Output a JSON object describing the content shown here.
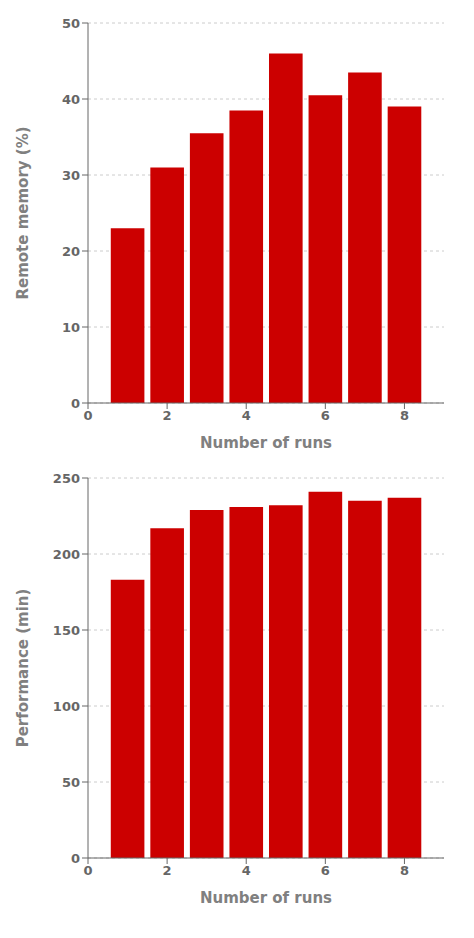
{
  "chart_data": [
    {
      "type": "bar",
      "x": [
        1,
        2,
        3,
        4,
        5,
        6,
        7,
        8
      ],
      "values": [
        23.0,
        31.0,
        35.5,
        38.5,
        46.0,
        40.5,
        43.5,
        39.0
      ],
      "xlabel": "Number of runs",
      "ylabel": "Remote memory (%)",
      "xlim": [
        0,
        9
      ],
      "xticks": [
        0,
        2,
        4,
        6,
        8
      ],
      "ylim": [
        0,
        50
      ],
      "yticks": [
        0,
        10,
        20,
        30,
        40,
        50
      ],
      "color": "#CC0000"
    },
    {
      "type": "bar",
      "x": [
        1,
        2,
        3,
        4,
        5,
        6,
        7,
        8
      ],
      "values": [
        183,
        217,
        229,
        231,
        232,
        241,
        235,
        237
      ],
      "xlabel": "Number of runs",
      "ylabel": "Performance (min)",
      "xlim": [
        0,
        9
      ],
      "xticks": [
        0,
        2,
        4,
        6,
        8
      ],
      "ylim": [
        0,
        250
      ],
      "yticks": [
        0,
        50,
        100,
        150,
        200,
        250
      ],
      "color": "#CC0000"
    }
  ]
}
